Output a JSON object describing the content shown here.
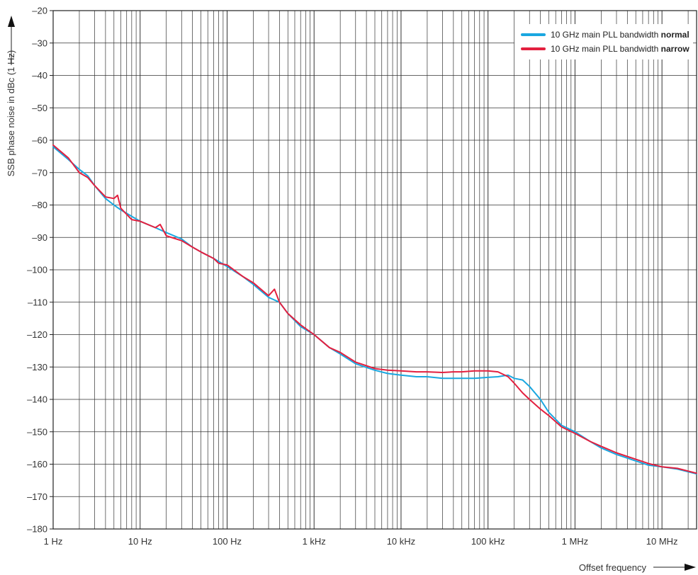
{
  "chart_data": {
    "type": "line",
    "xscale": "log",
    "xlim": [
      1,
      25000000
    ],
    "ylim": [
      -180,
      -20
    ],
    "x_ticks": [
      1,
      10,
      100,
      1000,
      10000,
      100000,
      1000000,
      10000000
    ],
    "x_tick_labels": [
      "1 Hz",
      "10 Hz",
      "100 Hz",
      "1 kHz",
      "10 kHz",
      "100 kHz",
      "1 MHz",
      "10 MHz"
    ],
    "y_ticks": [
      -20,
      -30,
      -40,
      -50,
      -60,
      -70,
      -80,
      -90,
      -100,
      -110,
      -120,
      -130,
      -140,
      -150,
      -160,
      -170,
      -180
    ],
    "y_tick_labels": [
      "–20",
      "–30",
      "–40",
      "–50",
      "–60",
      "–70",
      "–80",
      "–90",
      "–100",
      "–110",
      "–120",
      "–130",
      "–140",
      "–150",
      "–160",
      "–170",
      "–180"
    ],
    "xlabel": "Offset frequency",
    "ylabel": "SSB phase noise in dBc (1 Hz)",
    "grid": true,
    "legend_position": "top-right",
    "series": [
      {
        "name": "10 GHz main PLL bandwidth normal",
        "legend_prefix": "10 GHz main PLL bandwidth ",
        "legend_bold": "normal",
        "color": "#1aa7e0",
        "x": [
          1,
          1.5,
          2,
          2.5,
          3,
          4,
          5,
          6,
          8,
          10,
          15,
          20,
          30,
          40,
          50,
          70,
          100,
          150,
          200,
          300,
          400,
          500,
          700,
          1000,
          1500,
          2000,
          3000,
          5000,
          7000,
          10000,
          15000,
          20000,
          30000,
          40000,
          50000,
          70000,
          100000,
          130000,
          170000,
          200000,
          250000,
          300000,
          400000,
          500000,
          700000,
          1000000,
          1500000,
          2000000,
          3000000,
          5000000,
          7000000,
          10000000,
          15000000,
          25000000
        ],
        "y": [
          -62,
          -66,
          -69,
          -71,
          -74,
          -78,
          -80,
          -81.5,
          -83.5,
          -85,
          -87,
          -88.5,
          -90.5,
          -93,
          -94.5,
          -96.5,
          -99,
          -102,
          -104.5,
          -108.5,
          -110,
          -113.5,
          -117.5,
          -120,
          -124,
          -126,
          -129,
          -131,
          -132,
          -132.5,
          -133,
          -133,
          -133.5,
          -133.5,
          -133.5,
          -133.5,
          -133.2,
          -133,
          -132.5,
          -133.5,
          -134,
          -136,
          -140,
          -144,
          -148,
          -150,
          -153,
          -155,
          -157,
          -159,
          -160.3,
          -160.8,
          -161.5,
          -163
        ]
      },
      {
        "name": "10 GHz main PLL bandwidth narrow",
        "legend_prefix": "10 GHz main PLL bandwidth ",
        "legend_bold": "narrow",
        "color": "#e3203f",
        "x": [
          1,
          1.5,
          2,
          2.5,
          3,
          4,
          5,
          5.5,
          6,
          8,
          10,
          15,
          17,
          20,
          30,
          40,
          50,
          70,
          80,
          100,
          150,
          200,
          300,
          350,
          400,
          500,
          700,
          1000,
          1500,
          2000,
          3000,
          5000,
          7000,
          10000,
          15000,
          20000,
          30000,
          40000,
          50000,
          70000,
          100000,
          130000,
          170000,
          200000,
          250000,
          300000,
          400000,
          500000,
          700000,
          1000000,
          1500000,
          2000000,
          3000000,
          5000000,
          7000000,
          10000000,
          15000000,
          25000000
        ],
        "y": [
          -61.5,
          -65.5,
          -70,
          -71.5,
          -74,
          -77.5,
          -78,
          -77,
          -81,
          -84.5,
          -85,
          -87,
          -86,
          -89.5,
          -91,
          -93,
          -94.5,
          -96.5,
          -98,
          -98.5,
          -102,
          -104,
          -108,
          -106,
          -110,
          -113.5,
          -117,
          -120,
          -124,
          -125.5,
          -128.5,
          -130.5,
          -131,
          -131.2,
          -131.5,
          -131.5,
          -131.7,
          -131.5,
          -131.5,
          -131.2,
          -131.2,
          -131.5,
          -133,
          -135,
          -138,
          -140,
          -143,
          -145,
          -148.5,
          -150.5,
          -153,
          -154.5,
          -156.5,
          -158.5,
          -159.8,
          -160.8,
          -161.3,
          -162.8
        ]
      }
    ]
  }
}
